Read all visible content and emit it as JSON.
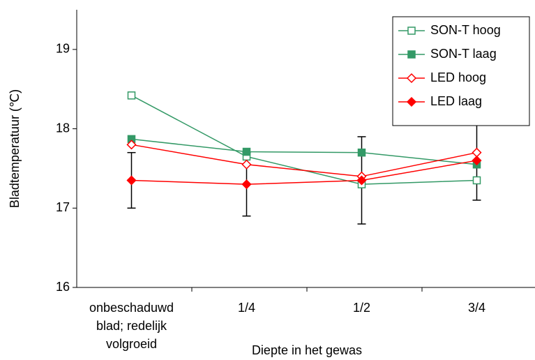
{
  "chart_data": {
    "type": "line",
    "ylabel": "Bladtemperatuur (℃)",
    "xlabel": "Diepte in het gewas",
    "categories": [
      "onbeschaduwd blad; redelijk volgroeid",
      "1/4",
      "1/2",
      "3/4"
    ],
    "ylim": [
      16,
      19.5
    ],
    "yticks": [
      16,
      17,
      18,
      19
    ],
    "legend": "top-right",
    "series": [
      {
        "name": "SON-T hoog",
        "color": "#339966",
        "marker": "square",
        "filled": false,
        "values": [
          18.42,
          17.65,
          17.3,
          17.35
        ]
      },
      {
        "name": "SON-T laag",
        "color": "#339966",
        "marker": "square",
        "filled": true,
        "values": [
          17.87,
          17.71,
          17.7,
          17.55
        ]
      },
      {
        "name": "LED hoog",
        "color": "#ff0000",
        "marker": "diamond",
        "filled": false,
        "values": [
          17.8,
          17.55,
          17.4,
          17.7
        ]
      },
      {
        "name": "LED laag",
        "color": "#ff0000",
        "marker": "diamond",
        "filled": true,
        "values": [
          17.35,
          17.3,
          17.35,
          17.6
        ],
        "errors": [
          0.35,
          0.4,
          0.55,
          0.5
        ]
      }
    ]
  }
}
